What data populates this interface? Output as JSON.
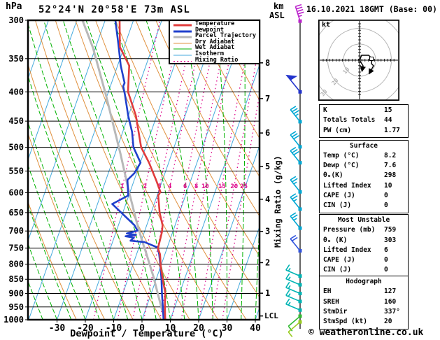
{
  "header": {
    "pressure_unit": "hPa",
    "station": "52°24'N 20°58'E 73m ASL",
    "datetime": "16.10.2021 18GMT (Base: 00)",
    "altitude_unit_line1": "km",
    "altitude_unit_line2": "ASL"
  },
  "footer": {
    "copyright": "© weatheronline.co.uk"
  },
  "legend": {
    "items": [
      {
        "label": "Temperature",
        "color": "#e03c3c",
        "width": 3,
        "dash": ""
      },
      {
        "label": "Dewpoint",
        "color": "#2040cc",
        "width": 3,
        "dash": ""
      },
      {
        "label": "Parcel Trajectory",
        "color": "#b8b8b8",
        "width": 3,
        "dash": ""
      },
      {
        "label": "Dry Adiabat",
        "color": "#e0913f",
        "width": 1,
        "dash": ""
      },
      {
        "label": "Wet Adiabat",
        "color": "#00b200",
        "width": 1,
        "dash": ""
      },
      {
        "label": "Isotherm",
        "color": "#44aadd",
        "width": 1,
        "dash": ""
      },
      {
        "label": "Mixing Ratio",
        "color": "#dd0088",
        "width": 1.5,
        "dash": "2,3"
      }
    ]
  },
  "chart_data": {
    "type": "skewt-log-p",
    "xlabel": "Dewpoint / Temperature (°C)",
    "ylabel_unit": "hPa",
    "x_ticks": [
      -30,
      -20,
      -10,
      0,
      10,
      20,
      30,
      40
    ],
    "x_range_c": [
      -40,
      41.5
    ],
    "pressure_ticks": [
      300,
      350,
      400,
      450,
      500,
      550,
      600,
      650,
      700,
      750,
      800,
      850,
      900,
      950,
      1000
    ],
    "pressure_range": [
      300,
      1000
    ],
    "km_ticks": [
      1,
      2,
      3,
      4,
      5,
      6,
      7,
      8
    ],
    "km_tick_pressures": [
      899,
      795,
      701,
      616,
      540,
      472,
      411,
      356
    ],
    "lcl_label": "LCL",
    "lcl_pressure": 985,
    "mixing_ratio_axis_label": "Mixing Ratio (g/kg)",
    "mixing_ratio_labels": [
      1,
      2,
      3,
      4,
      6,
      8,
      10,
      15,
      20,
      25
    ],
    "isotherm_step_c": 10,
    "dry_adiabat_step_k": 10,
    "wet_adiabat_step_c": 5,
    "series": {
      "temperature": [
        [
          1000,
          8.2
        ],
        [
          950,
          6.5
        ],
        [
          898,
          4.9
        ],
        [
          853,
          2.5
        ],
        [
          806,
          0.0
        ],
        [
          769,
          -1.7
        ],
        [
          750,
          -3.2
        ],
        [
          732,
          -3.4
        ],
        [
          703,
          -3.8
        ],
        [
          684,
          -4.4
        ],
        [
          650,
          -7.0
        ],
        [
          607,
          -9.6
        ],
        [
          598,
          -9.3
        ],
        [
          570,
          -12.3
        ],
        [
          555,
          -14.1
        ],
        [
          532,
          -16.9
        ],
        [
          500,
          -21.6
        ],
        [
          440,
          -27.4
        ],
        [
          400,
          -33.1
        ],
        [
          360,
          -35.9
        ],
        [
          334,
          -41.5
        ],
        [
          300,
          -44.9
        ]
      ],
      "dewpoint": [
        [
          1000,
          7.6
        ],
        [
          953,
          5.9
        ],
        [
          905,
          4.0
        ],
        [
          853,
          2.0
        ],
        [
          806,
          -0.1
        ],
        [
          769,
          -2.0
        ],
        [
          748,
          -3.4
        ],
        [
          732,
          -8.7
        ],
        [
          728,
          -13.8
        ],
        [
          719,
          -13.0
        ],
        [
          715,
          -16.1
        ],
        [
          711,
          -12.6
        ],
        [
          707,
          -16.0
        ],
        [
          699,
          -12.6
        ],
        [
          684,
          -14.3
        ],
        [
          628,
          -24.8
        ],
        [
          607,
          -20.2
        ],
        [
          570,
          -22.4
        ],
        [
          555,
          -20.8
        ],
        [
          532,
          -19.9
        ],
        [
          500,
          -24.3
        ],
        [
          470,
          -26.7
        ],
        [
          440,
          -30.1
        ],
        [
          404,
          -33.9
        ],
        [
          391,
          -35.5
        ],
        [
          386,
          -35.4
        ],
        [
          360,
          -38.9
        ],
        [
          330,
          -42.4
        ],
        [
          300,
          -46.4
        ]
      ],
      "parcel": [
        [
          1000,
          8.2
        ],
        [
          953,
          5.4
        ],
        [
          898,
          2.2
        ],
        [
          842,
          -1.2
        ],
        [
          801,
          -4.1
        ],
        [
          763,
          -6.9
        ],
        [
          732,
          -9.4
        ],
        [
          703,
          -11.7
        ],
        [
          666,
          -14.7
        ],
        [
          630,
          -17.6
        ],
        [
          598,
          -20.4
        ],
        [
          561,
          -23.6
        ],
        [
          513,
          -28.1
        ],
        [
          464,
          -33.4
        ],
        [
          405,
          -40.5
        ],
        [
          335,
          -50.9
        ],
        [
          300,
          -58.0
        ]
      ]
    },
    "wind_barbs": [
      {
        "p": 301,
        "kt": 45,
        "color": "#bb22cc",
        "dir": "up"
      },
      {
        "p": 400,
        "kt": 50,
        "color": "#2233cc",
        "dir": "ul"
      },
      {
        "p": 451,
        "kt": 35,
        "color": "#00a8d4",
        "dir": "ul"
      },
      {
        "p": 499,
        "kt": 30,
        "color": "#00a8d4",
        "dir": "ul"
      },
      {
        "p": 532,
        "kt": 30,
        "color": "#00a8d4",
        "dir": "ul"
      },
      {
        "p": 598,
        "kt": 25,
        "color": "#00a8d4",
        "dir": "ul"
      },
      {
        "p": 641,
        "kt": 25,
        "color": "#00a8d4",
        "dir": "ul"
      },
      {
        "p": 692,
        "kt": 25,
        "color": "#00a8d4",
        "dir": "ul"
      },
      {
        "p": 758,
        "kt": 20,
        "color": "#3355dd",
        "dir": "ul"
      },
      {
        "p": 839,
        "kt": 15,
        "color": "#00b4b4",
        "dir": "l"
      },
      {
        "p": 869,
        "kt": 15,
        "color": "#00b4b4",
        "dir": "l"
      },
      {
        "p": 900,
        "kt": 15,
        "color": "#00b4b4",
        "dir": "l"
      },
      {
        "p": 929,
        "kt": 15,
        "color": "#00b4b4",
        "dir": "l"
      },
      {
        "p": 962,
        "kt": 15,
        "color": "#00b4b4",
        "dir": "l"
      },
      {
        "p": 986,
        "kt": 10,
        "color": "#33bb33",
        "dir": "dl"
      },
      {
        "p": 1009,
        "kt": 10,
        "color": "#99cc22",
        "dir": "dl"
      }
    ]
  },
  "hodograph": {
    "unit_label": "kt",
    "ring_labels": [
      "10",
      "20",
      "30"
    ],
    "trace": [
      [
        0,
        0
      ],
      [
        3,
        -7
      ],
      [
        13,
        -7
      ],
      [
        18,
        -2
      ],
      [
        17,
        5
      ],
      [
        20,
        8
      ],
      [
        15,
        17
      ]
    ],
    "trace_branch": [
      [
        0,
        0
      ],
      [
        5,
        8
      ],
      [
        4,
        13
      ]
    ],
    "marker_square": [
      17,
      -2
    ]
  },
  "panel": {
    "sections": [
      {
        "title": "",
        "rows": [
          [
            "K",
            "15"
          ],
          [
            "Totals Totals",
            "44"
          ],
          [
            "PW (cm)",
            "1.77"
          ]
        ]
      },
      {
        "title": "Surface",
        "rows": [
          [
            "Temp (°C)",
            "8.2"
          ],
          [
            "Dewp (°C)",
            "7.6"
          ],
          [
            "θₑ(K)",
            "298"
          ],
          [
            "Lifted Index",
            "10"
          ],
          [
            "CAPE (J)",
            "0"
          ],
          [
            "CIN (J)",
            "0"
          ]
        ]
      },
      {
        "title": "Most Unstable",
        "rows": [
          [
            "Pressure (mb)",
            "759"
          ],
          [
            "θₑ (K)",
            "303"
          ],
          [
            "Lifted Index",
            "6"
          ],
          [
            "CAPE (J)",
            "0"
          ],
          [
            "CIN (J)",
            "0"
          ]
        ]
      },
      {
        "title": "Hodograph",
        "rows": [
          [
            "EH",
            "127"
          ],
          [
            "SREH",
            "160"
          ],
          [
            "StmDir",
            "337°"
          ],
          [
            "StmSpd (kt)",
            "20"
          ]
        ]
      }
    ]
  }
}
